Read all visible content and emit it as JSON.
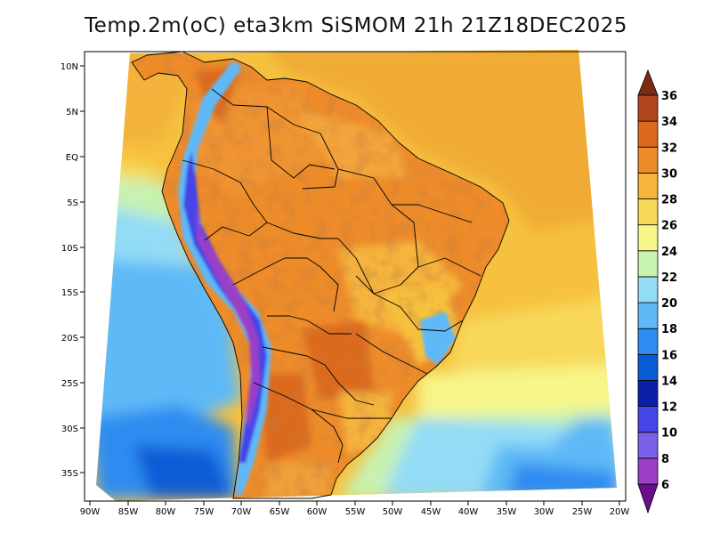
{
  "title": "Temp.2m(oC) eta3km SiSMOM 21h 21Z18DEC2025",
  "map": {
    "lon_range": [
      -91,
      -19.5
    ],
    "lat_range": [
      -38.5,
      11.5
    ],
    "lon_ticks": [
      "90W",
      "85W",
      "80W",
      "75W",
      "70W",
      "65W",
      "60W",
      "55W",
      "50W",
      "45W",
      "40W",
      "35W",
      "30W",
      "25W",
      "20W"
    ],
    "lat_ticks": [
      "10N",
      "5N",
      "EQ",
      "5S",
      "10S",
      "15S",
      "20S",
      "25S",
      "30S",
      "35S"
    ]
  },
  "colorbar": {
    "levels": [
      "6",
      "8",
      "10",
      "12",
      "14",
      "16",
      "18",
      "20",
      "22",
      "24",
      "26",
      "28",
      "30",
      "32",
      "34",
      "36"
    ],
    "colors": [
      "#6a0d8a",
      "#9a3fc6",
      "#7b61e8",
      "#4545e6",
      "#0a1fa8",
      "#0a5bd6",
      "#2f8cf0",
      "#5eb9f6",
      "#93dcf6",
      "#c8f2b0",
      "#f6f68a",
      "#f8d85a",
      "#f5b43c",
      "#ee8c2a",
      "#dc6a1e",
      "#b0441c",
      "#7a2c10"
    ],
    "under_color": "#6a0d8a",
    "over_color": "#7a2c10"
  }
}
